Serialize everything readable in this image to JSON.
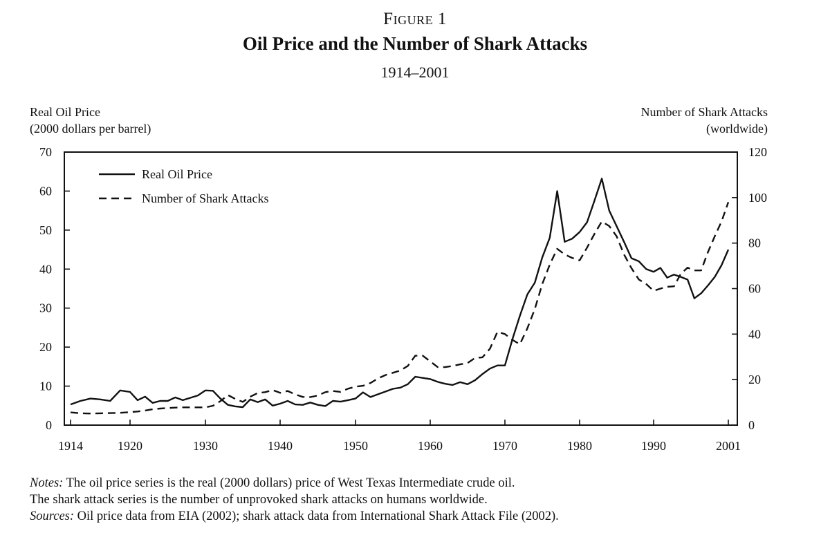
{
  "figure_label": "Figure 1",
  "chart_data": {
    "type": "line",
    "title": "Oil Price and the Number of Shark Attacks",
    "subtitle": "1914–2001",
    "ylabel_left": [
      "Real Oil Price",
      "(2000 dollars per barrel)"
    ],
    "ylabel_right": [
      "Number of Shark Attacks",
      "(worldwide)"
    ],
    "xlabel": "",
    "xlim": [
      1914,
      2001
    ],
    "ylim_left": [
      0,
      70
    ],
    "ylim_right": [
      0,
      120
    ],
    "x_ticks": [
      "1914",
      "1920",
      "1930",
      "1940",
      "1950",
      "1960",
      "1970",
      "1980",
      "1990",
      "2001"
    ],
    "y_ticks_left": [
      "0",
      "10",
      "20",
      "30",
      "40",
      "50",
      "60",
      "70"
    ],
    "y_ticks_right": [
      "0",
      "20",
      "40",
      "60",
      "80",
      "100",
      "120"
    ],
    "grid": false,
    "legend_position": "top-left",
    "x": [
      1914,
      1915,
      1916,
      1917,
      1918,
      1919,
      1920,
      1921,
      1922,
      1923,
      1924,
      1925,
      1926,
      1927,
      1928,
      1929,
      1930,
      1931,
      1932,
      1933,
      1934,
      1935,
      1936,
      1937,
      1938,
      1939,
      1940,
      1941,
      1942,
      1943,
      1944,
      1945,
      1946,
      1947,
      1948,
      1949,
      1950,
      1951,
      1952,
      1953,
      1954,
      1955,
      1956,
      1957,
      1958,
      1959,
      1960,
      1961,
      1962,
      1963,
      1964,
      1965,
      1966,
      1967,
      1968,
      1969,
      1970,
      1971,
      1972,
      1973,
      1974,
      1975,
      1976,
      1977,
      1978,
      1979,
      1980,
      1981,
      1982,
      1983,
      1984,
      1985,
      1986,
      1987,
      1988,
      1989,
      1990,
      1991,
      1992,
      1993,
      1994,
      1995,
      1996,
      1997,
      1998,
      1999,
      2000,
      2001
    ],
    "series": [
      {
        "name": "Real Oil Price",
        "axis": "left",
        "style": "solid",
        "color": "#111111",
        "values": [
          5.3,
          6.2,
          6.8,
          6.6,
          6.2,
          8.9,
          8.5,
          6.4,
          7.3,
          5.7,
          6.2,
          6.2,
          7.1,
          6.4,
          7.0,
          7.6,
          8.9,
          8.8,
          6.8,
          5.2,
          4.8,
          4.6,
          6.6,
          5.9,
          6.6,
          5.0,
          5.5,
          6.2,
          5.3,
          5.2,
          5.8,
          5.2,
          4.9,
          6.2,
          6.0,
          6.4,
          6.8,
          8.4,
          7.2,
          7.9,
          8.6,
          9.3,
          9.6,
          10.5,
          12.4,
          12.1,
          11.8,
          11.1,
          10.6,
          10.3,
          11.0,
          10.5,
          11.5,
          13.1,
          14.5,
          15.3,
          15.3,
          22.0,
          28.0,
          33.5,
          36.5,
          43.0,
          48.0,
          60.0,
          47.0,
          47.8,
          49.5,
          52.0,
          57.5,
          63.2,
          55.0,
          51.0,
          47.0,
          42.8,
          42.0,
          40.0,
          39.3,
          40.3,
          37.8,
          38.6,
          38.0,
          37.3,
          32.5,
          33.8,
          35.8,
          38.0,
          41.0,
          45.0
        ]
      },
      {
        "name": "Number of Shark Attacks",
        "axis": "right",
        "style": "dashed",
        "color": "#111111",
        "values": [
          5.6,
          5.2,
          5.1,
          5.2,
          5.3,
          5.4,
          5.7,
          6.0,
          6.4,
          7.0,
          7.3,
          7.5,
          7.7,
          7.8,
          7.8,
          7.8,
          7.8,
          8.5,
          10.5,
          13.2,
          11.5,
          10.2,
          12.5,
          14.1,
          14.5,
          15.4,
          14.2,
          15.0,
          13.5,
          12.4,
          12.3,
          13.0,
          14.5,
          15.0,
          14.6,
          16.0,
          16.9,
          17.3,
          18.5,
          20.5,
          22.0,
          23.0,
          24.0,
          26.0,
          30.5,
          30.5,
          28.0,
          25.5,
          25.5,
          26.0,
          26.7,
          27.3,
          29.5,
          29.8,
          33.6,
          41.0,
          40.0,
          37.5,
          35.5,
          42.5,
          51.0,
          62.0,
          70.5,
          77.5,
          75.0,
          73.5,
          72.4,
          78.0,
          84.0,
          89.5,
          87.5,
          83.0,
          75.0,
          69.0,
          64.0,
          62.0,
          59.0,
          60.0,
          60.8,
          61.0,
          66.5,
          69.2,
          68.0,
          68.0,
          76.0,
          83.0,
          89.5,
          98.0
        ]
      }
    ]
  },
  "notes": {
    "notes_label": "Notes:",
    "notes_line1": " The oil price series is the real (2000 dollars) price of West Texas Intermediate crude oil.",
    "notes_line2": "The shark attack series is the number of unprovoked shark attacks on humans worldwide.",
    "sources_label": "Sources:",
    "sources_line": " Oil price data from EIA (2002); shark attack data from International Shark Attack File (2002)."
  }
}
